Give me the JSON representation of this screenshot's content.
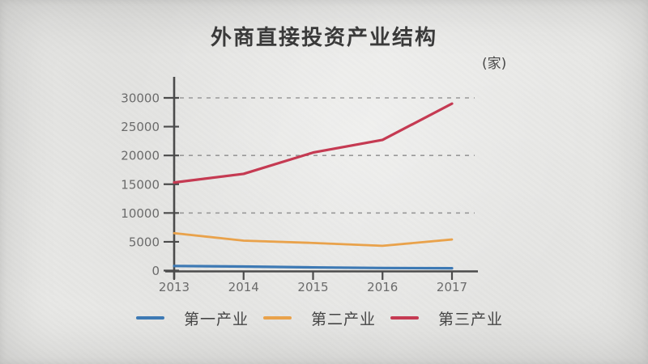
{
  "header": {
    "title": "外商直接投资产业结构",
    "unit_label": "(家)"
  },
  "legend": {
    "items": [
      {
        "label": "第一产业",
        "color": "#3d79b4"
      },
      {
        "label": "第二产业",
        "color": "#e9a24b"
      },
      {
        "label": "第三产业",
        "color": "#c53a52"
      }
    ]
  },
  "chart_data": {
    "type": "line",
    "title": "外商直接投资产业结构",
    "unit": "家",
    "categories": [
      "2013",
      "2014",
      "2015",
      "2016",
      "2017"
    ],
    "series": [
      {
        "name": "第一产业",
        "color": "#3d79b4",
        "line_width": 3.2,
        "values": [
          800,
          700,
          550,
          450,
          400
        ]
      },
      {
        "name": "第二产业",
        "color": "#e9a24b",
        "line_width": 2.8,
        "values": [
          6500,
          5200,
          4800,
          4300,
          5400
        ]
      },
      {
        "name": "第三产业",
        "color": "#c53a52",
        "line_width": 3.2,
        "values": [
          15300,
          16800,
          20500,
          22700,
          29000
        ]
      }
    ],
    "xlabel": "",
    "ylabel": "",
    "ylim": [
      0,
      30000
    ],
    "ytick_step": 5000,
    "ytick_labels": [
      "0",
      "5000",
      "10000",
      "15000",
      "20000",
      "25000",
      "30000"
    ],
    "gridline_values": [
      10000,
      20000,
      30000
    ],
    "grid_style": "dashed",
    "legend_position": "bottom",
    "axis_color": "#4b4b4b",
    "grid_color": "#999999",
    "tick_label_color": "#6b6b6b"
  }
}
